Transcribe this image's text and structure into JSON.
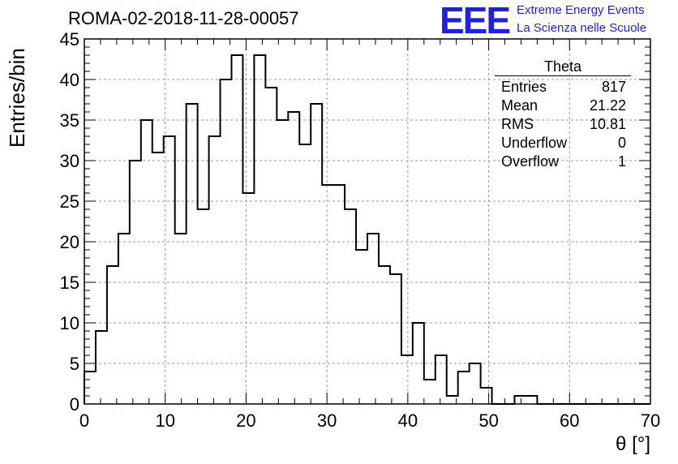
{
  "header": {
    "title": "ROMA-02-2018-11-28-00057",
    "logo": "EEE",
    "logo_line1": "Extreme Energy Events",
    "logo_line2": "La Scienza nelle Scuole"
  },
  "stats": {
    "name": "Theta",
    "rows": [
      {
        "label": "Entries",
        "value": "817"
      },
      {
        "label": "Mean",
        "value": "21.22"
      },
      {
        "label": "RMS",
        "value": "10.81"
      },
      {
        "label": "Underflow",
        "value": "0"
      },
      {
        "label": "Overflow",
        "value": "1"
      }
    ]
  },
  "chart_data": {
    "type": "bar",
    "style": "step-histogram",
    "title": "ROMA-02-2018-11-28-00057",
    "xlabel": "θ [°]",
    "ylabel": "Entries/bin",
    "xlim": [
      0,
      70
    ],
    "ylim": [
      0,
      45
    ],
    "bin_width": 1.4,
    "x_ticks": [
      0,
      10,
      20,
      30,
      40,
      50,
      60,
      70
    ],
    "y_ticks": [
      0,
      5,
      10,
      15,
      20,
      25,
      30,
      35,
      40,
      45
    ],
    "grid": true,
    "values": [
      4,
      9,
      17,
      21,
      30,
      35,
      31,
      33,
      21,
      37,
      24,
      33,
      40,
      43,
      26,
      43,
      39,
      35,
      36,
      32,
      37,
      27,
      27,
      24,
      19,
      21,
      17,
      16,
      6,
      10,
      3,
      6,
      1,
      4,
      5,
      2,
      0,
      0,
      1,
      1,
      0,
      0,
      0,
      0,
      0,
      0,
      0,
      0,
      0,
      0
    ],
    "line_color": "#000000"
  }
}
